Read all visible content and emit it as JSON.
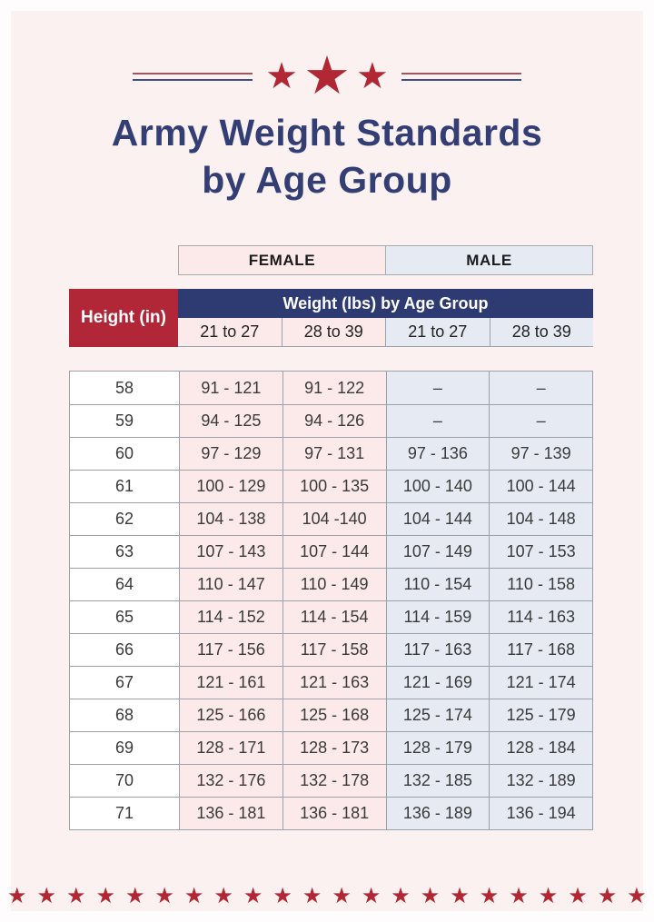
{
  "header": {
    "title_line1": "Army Weight Standards",
    "title_line2": "by Age Group"
  },
  "decoration": {
    "star_glyph": "★",
    "top_star_count": 3,
    "bottom_star_count": 22
  },
  "gender_bar": {
    "female": "FEMALE",
    "male": "MALE"
  },
  "table": {
    "height_header": "Height (in)",
    "group_header": "Weight (lbs) by Age Group",
    "age_headers": [
      "21 to 27",
      "28 to 39",
      "21 to 27",
      "28 to 39"
    ],
    "rows": [
      {
        "height": "58",
        "values": [
          "91 - 121",
          "91 - 122",
          "–",
          "–"
        ]
      },
      {
        "height": "59",
        "values": [
          "94 - 125",
          "94 - 126",
          "–",
          "–"
        ]
      },
      {
        "height": "60",
        "values": [
          "97 - 129",
          "97 - 131",
          "97 - 136",
          "97 - 139"
        ]
      },
      {
        "height": "61",
        "values": [
          "100 - 129",
          "100 - 135",
          "100 - 140",
          "100 - 144"
        ]
      },
      {
        "height": "62",
        "values": [
          "104 - 138",
          "104 -140",
          "104 - 144",
          "104 - 148"
        ]
      },
      {
        "height": "63",
        "values": [
          "107 - 143",
          "107 - 144",
          "107 - 149",
          "107 - 153"
        ]
      },
      {
        "height": "64",
        "values": [
          "110 - 147",
          "110 - 149",
          "110 - 154",
          "110 - 158"
        ]
      },
      {
        "height": "65",
        "values": [
          "114 - 152",
          "114 - 154",
          "114 - 159",
          "114 - 163"
        ]
      },
      {
        "height": "66",
        "values": [
          "117 - 156",
          "117 - 158",
          "117 - 163",
          "117 - 168"
        ]
      },
      {
        "height": "67",
        "values": [
          "121 - 161",
          "121 - 163",
          "121 - 169",
          "121 - 174"
        ]
      },
      {
        "height": "68",
        "values": [
          "125 - 166",
          "125 - 168",
          "125 - 174",
          "125 - 179"
        ]
      },
      {
        "height": "69",
        "values": [
          "128 - 171",
          "128 - 173",
          "128 - 179",
          "128 - 184"
        ]
      },
      {
        "height": "70",
        "values": [
          "132 - 176",
          "132 - 178",
          "132 - 185",
          "132 - 189"
        ]
      },
      {
        "height": "71",
        "values": [
          "136 - 181",
          "136 - 181",
          "136 - 189",
          "136 - 194"
        ]
      }
    ]
  },
  "chart_data": {
    "type": "table",
    "title": "Army Weight Standards by Age Group",
    "columns": [
      "Height (in)",
      "Female 21 to 27",
      "Female 28 to 39",
      "Male 21 to 27",
      "Male 28 to 39"
    ],
    "rows": [
      [
        "58",
        "91 - 121",
        "91 - 122",
        "–",
        "–"
      ],
      [
        "59",
        "94 - 125",
        "94 - 126",
        "–",
        "–"
      ],
      [
        "60",
        "97 - 129",
        "97 - 131",
        "97 - 136",
        "97 - 139"
      ],
      [
        "61",
        "100 - 129",
        "100 - 135",
        "100 - 140",
        "100 - 144"
      ],
      [
        "62",
        "104 - 138",
        "104 -140",
        "104 - 144",
        "104 - 148"
      ],
      [
        "63",
        "107 - 143",
        "107 - 144",
        "107 - 149",
        "107 - 153"
      ],
      [
        "64",
        "110 - 147",
        "110 - 149",
        "110 - 154",
        "110 - 158"
      ],
      [
        "65",
        "114 - 152",
        "114 - 154",
        "114 - 159",
        "114 - 163"
      ],
      [
        "66",
        "117 - 156",
        "117 - 158",
        "117 - 163",
        "117 - 168"
      ],
      [
        "67",
        "121 - 161",
        "121 - 163",
        "121 - 169",
        "121 - 174"
      ],
      [
        "68",
        "125 - 166",
        "125 - 168",
        "125 - 174",
        "125 - 179"
      ],
      [
        "69",
        "128 - 171",
        "128 - 173",
        "128 - 179",
        "128 - 184"
      ],
      [
        "70",
        "132 - 176",
        "132 - 178",
        "132 - 185",
        "132 - 189"
      ],
      [
        "71",
        "136 - 181",
        "136 - 181",
        "136 - 189",
        "136 - 194"
      ]
    ]
  },
  "colors": {
    "page_background": "#faf1f0",
    "frame": "#fefcfc",
    "accent_red": "#b12737",
    "accent_navy": "#2e3a72",
    "title_navy": "#333e75",
    "female_pink": "#fce9e9",
    "male_blue": "#e6eaf3",
    "border_grey": "#9ba0a9",
    "star_red": "#b22734"
  }
}
